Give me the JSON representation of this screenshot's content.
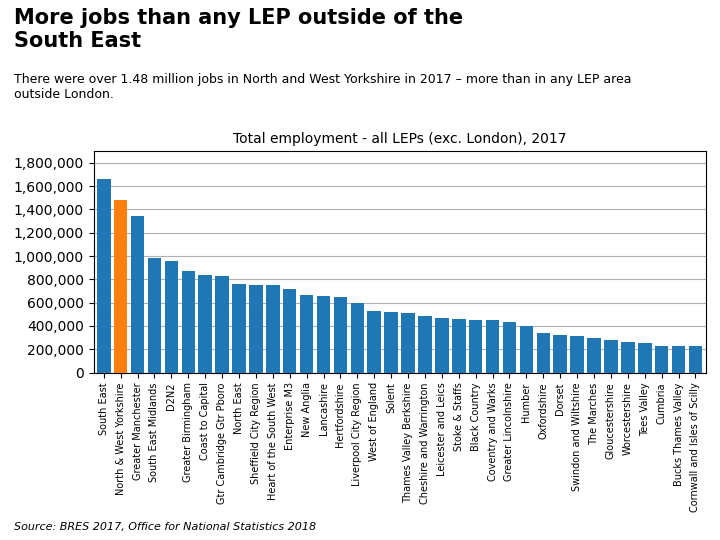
{
  "chart_data": {
    "type": "bar",
    "title": "More jobs than any LEP outside of the\nSouth East",
    "subtitle": "There were over 1.48 million jobs in North and West Yorkshire in 2017 – more than in any LEP area\noutside London.",
    "annotations": [
      "Total employment - all LEPs (exc. London), 2017",
      "Source: BRES 2017, Office for National Statistics 2018"
    ],
    "categories": [
      "South East",
      "North & West Yorkshire",
      "Greater Manchester",
      "South East Midlands",
      "D2N2",
      "Greater Birmingham",
      "Coast to Capital",
      "Gtr Cambridge Gtr Pboro",
      "North East",
      "Sheffield City Region",
      "Heart of the South West",
      "Enterprise M3",
      "New Anglia",
      "Lancashire",
      "Hertfordshire",
      "Liverpool City Region",
      "West of England",
      "Solent",
      "Thames Valley Berkshire",
      "Cheshire and Warrington",
      "Leicester and Leics",
      "Stoke & Staffs",
      "Black Country",
      "Coventry and Warks",
      "Greater Lincolnshire",
      "Humber",
      "Oxfordshire",
      "Dorset",
      "Swindon and Wiltshire",
      "The Marches",
      "Gloucestershire",
      "Worcestershire",
      "Tees Valley",
      "Cumbria",
      "Bucks Thames Valley",
      "Cornwall and Isles of Scilly"
    ],
    "values": [
      1660000,
      1480000,
      1340000,
      980000,
      960000,
      870000,
      840000,
      830000,
      760000,
      750000,
      750000,
      720000,
      670000,
      660000,
      650000,
      600000,
      530000,
      520000,
      510000,
      490000,
      470000,
      460000,
      450000,
      450000,
      435000,
      400000,
      340000,
      320000,
      310000,
      295000,
      280000,
      265000,
      250000,
      230000,
      225000,
      225000
    ],
    "colors": [
      "#1f77b4",
      "#ff7f0e",
      "#1f77b4",
      "#1f77b4",
      "#1f77b4",
      "#1f77b4",
      "#1f77b4",
      "#1f77b4",
      "#1f77b4",
      "#1f77b4",
      "#1f77b4",
      "#1f77b4",
      "#1f77b4",
      "#1f77b4",
      "#1f77b4",
      "#1f77b4",
      "#1f77b4",
      "#1f77b4",
      "#1f77b4",
      "#1f77b4",
      "#1f77b4",
      "#1f77b4",
      "#1f77b4",
      "#1f77b4",
      "#1f77b4",
      "#1f77b4",
      "#1f77b4",
      "#1f77b4",
      "#1f77b4",
      "#1f77b4",
      "#1f77b4",
      "#1f77b4",
      "#1f77b4",
      "#1f77b4",
      "#1f77b4",
      "#1f77b4"
    ],
    "ylim": [
      0,
      1900000
    ],
    "yticks": [
      0,
      {
        "value": 200000,
        "label": "200,000"
      },
      {
        "value": 400000,
        "label": "400,000"
      },
      {
        "value": 600000,
        "label": "600,000"
      },
      {
        "value": 800000,
        "label": "800,000"
      },
      {
        "value": 1000000,
        "label": "1,000,000"
      },
      {
        "value": 1200000,
        "label": "1,200,000"
      },
      {
        "value": 1400000,
        "label": "1,400,000"
      },
      {
        "value": 1600000,
        "label": "1,600,000"
      },
      {
        "value": 1800000,
        "label": "1,800,000"
      }
    ],
    "grid": true
  }
}
